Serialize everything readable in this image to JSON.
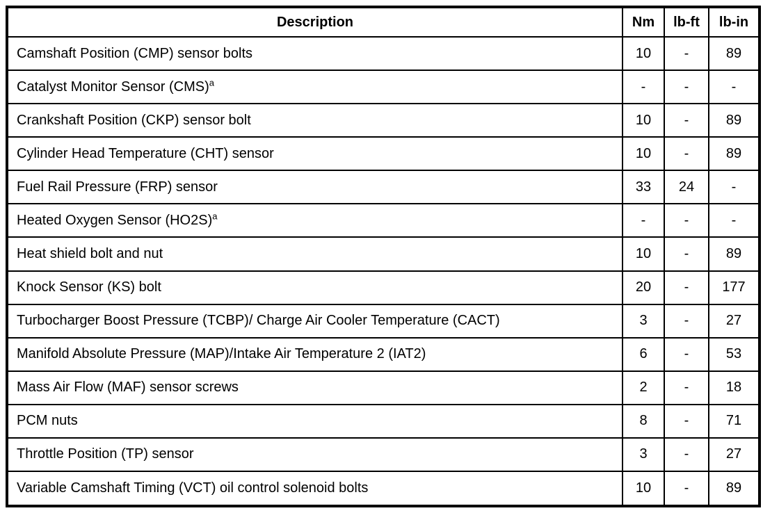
{
  "page": {
    "background_color": "#ffffff",
    "border_color": "#000000"
  },
  "table": {
    "headers": {
      "description": "Description",
      "nm": "Nm",
      "lbft": "lb-ft",
      "lbin": "lb-in"
    },
    "rows": [
      {
        "description": "Camshaft Position (CMP) sensor bolts",
        "sup": "",
        "nm": "10",
        "lbft": "-",
        "lbin": "89"
      },
      {
        "description": "Catalyst Monitor Sensor (CMS)",
        "sup": "a",
        "nm": "-",
        "lbft": "-",
        "lbin": "-"
      },
      {
        "description": "Crankshaft Position (CKP) sensor bolt",
        "sup": "",
        "nm": "10",
        "lbft": "-",
        "lbin": "89"
      },
      {
        "description": "Cylinder Head Temperature (CHT) sensor",
        "sup": "",
        "nm": "10",
        "lbft": "-",
        "lbin": "89"
      },
      {
        "description": "Fuel Rail Pressure (FRP) sensor",
        "sup": "",
        "nm": "33",
        "lbft": "24",
        "lbin": "-"
      },
      {
        "description": "Heated Oxygen Sensor (HO2S)",
        "sup": "a",
        "nm": "-",
        "lbft": "-",
        "lbin": "-"
      },
      {
        "description": "Heat shield bolt and nut",
        "sup": "",
        "nm": "10",
        "lbft": "-",
        "lbin": "89"
      },
      {
        "description": "Knock Sensor (KS) bolt",
        "sup": "",
        "nm": "20",
        "lbft": "-",
        "lbin": "177"
      },
      {
        "description": "Turbocharger Boost Pressure (TCBP)/ Charge Air Cooler Temperature (CACT)",
        "sup": "",
        "nm": "3",
        "lbft": "-",
        "lbin": "27"
      },
      {
        "description": "Manifold Absolute Pressure (MAP)/Intake Air Temperature 2 (IAT2)",
        "sup": "",
        "nm": "6",
        "lbft": "-",
        "lbin": "53"
      },
      {
        "description": "Mass Air Flow (MAF) sensor screws",
        "sup": "",
        "nm": "2",
        "lbft": "-",
        "lbin": "18"
      },
      {
        "description": "PCM nuts",
        "sup": "",
        "nm": "8",
        "lbft": "-",
        "lbin": "71"
      },
      {
        "description": "Throttle Position (TP) sensor",
        "sup": "",
        "nm": "3",
        "lbft": "-",
        "lbin": "27"
      },
      {
        "description": "Variable Camshaft Timing (VCT) oil control solenoid bolts",
        "sup": "",
        "nm": "10",
        "lbft": "-",
        "lbin": "89"
      }
    ]
  }
}
